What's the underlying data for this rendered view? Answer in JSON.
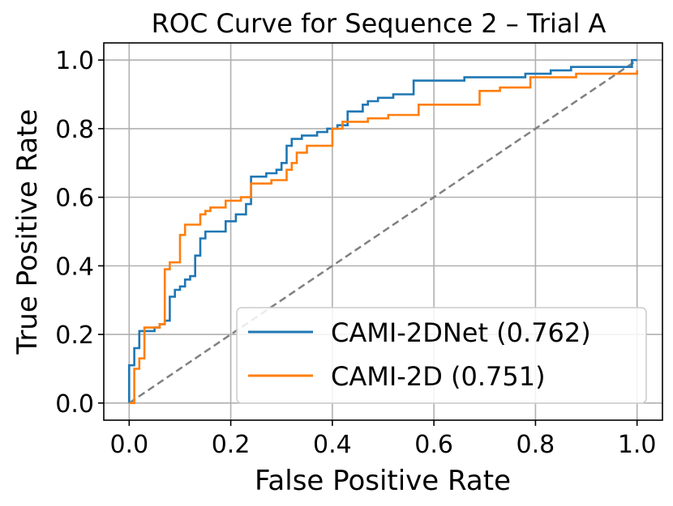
{
  "chart_data": {
    "type": "line",
    "title": "ROC Curve for Sequence 2 – Trial A",
    "xlabel": "False Positive Rate",
    "ylabel": "True Positive Rate",
    "xlim": [
      -0.05,
      1.05
    ],
    "ylim": [
      -0.05,
      1.05
    ],
    "xticks": [
      "0.0",
      "0.2",
      "0.4",
      "0.6",
      "0.8",
      "1.0"
    ],
    "yticks": [
      "0.0",
      "0.2",
      "0.4",
      "0.6",
      "0.8",
      "1.0"
    ],
    "grid": true,
    "legend_position": "lower-right",
    "series": [
      {
        "name": "CAMI-2DNet (0.762)",
        "color": "#1f77b4",
        "x": [
          0.0,
          0.0,
          0.01,
          0.01,
          0.02,
          0.02,
          0.05,
          0.05,
          0.06,
          0.06,
          0.07,
          0.07,
          0.08,
          0.08,
          0.09,
          0.09,
          0.1,
          0.1,
          0.11,
          0.11,
          0.12,
          0.12,
          0.13,
          0.13,
          0.14,
          0.14,
          0.15,
          0.15,
          0.19,
          0.19,
          0.21,
          0.21,
          0.23,
          0.23,
          0.24,
          0.24,
          0.27,
          0.27,
          0.29,
          0.29,
          0.3,
          0.3,
          0.31,
          0.31,
          0.32,
          0.32,
          0.34,
          0.34,
          0.37,
          0.37,
          0.39,
          0.39,
          0.41,
          0.41,
          0.43,
          0.43,
          0.46,
          0.46,
          0.47,
          0.47,
          0.49,
          0.49,
          0.52,
          0.52,
          0.56,
          0.56,
          0.63,
          0.63,
          0.66,
          0.66,
          0.75,
          0.75,
          0.78,
          0.78,
          0.83,
          0.83,
          0.87,
          0.87,
          0.92,
          0.92,
          0.99,
          0.99,
          1.0
        ],
        "y": [
          0.0,
          0.11,
          0.11,
          0.16,
          0.16,
          0.21,
          0.21,
          0.22,
          0.22,
          0.23,
          0.23,
          0.24,
          0.24,
          0.31,
          0.31,
          0.33,
          0.33,
          0.34,
          0.34,
          0.36,
          0.36,
          0.37,
          0.37,
          0.43,
          0.43,
          0.48,
          0.48,
          0.5,
          0.5,
          0.53,
          0.53,
          0.55,
          0.55,
          0.58,
          0.58,
          0.66,
          0.66,
          0.67,
          0.67,
          0.68,
          0.68,
          0.7,
          0.7,
          0.75,
          0.75,
          0.77,
          0.77,
          0.78,
          0.78,
          0.79,
          0.79,
          0.8,
          0.8,
          0.81,
          0.81,
          0.85,
          0.85,
          0.87,
          0.87,
          0.88,
          0.88,
          0.89,
          0.89,
          0.9,
          0.9,
          0.94,
          0.94,
          0.94,
          0.94,
          0.95,
          0.95,
          0.95,
          0.95,
          0.96,
          0.96,
          0.97,
          0.97,
          0.98,
          0.98,
          0.98,
          0.98,
          1.0,
          1.0
        ]
      },
      {
        "name": "CAMI-2D (0.751)",
        "color": "#ff7f0e",
        "x": [
          0.0,
          0.01,
          0.01,
          0.02,
          0.02,
          0.03,
          0.03,
          0.04,
          0.04,
          0.06,
          0.06,
          0.07,
          0.07,
          0.08,
          0.08,
          0.09,
          0.09,
          0.1,
          0.1,
          0.11,
          0.11,
          0.12,
          0.12,
          0.14,
          0.14,
          0.15,
          0.15,
          0.16,
          0.16,
          0.19,
          0.19,
          0.22,
          0.22,
          0.24,
          0.24,
          0.26,
          0.26,
          0.28,
          0.28,
          0.31,
          0.31,
          0.32,
          0.32,
          0.33,
          0.33,
          0.35,
          0.35,
          0.4,
          0.4,
          0.42,
          0.42,
          0.47,
          0.47,
          0.51,
          0.51,
          0.57,
          0.57,
          0.69,
          0.69,
          0.73,
          0.73,
          0.79,
          0.79,
          0.84,
          0.84,
          0.88,
          0.88,
          1.0,
          1.0
        ],
        "y": [
          0.0,
          0.0,
          0.1,
          0.1,
          0.13,
          0.13,
          0.22,
          0.22,
          0.22,
          0.22,
          0.23,
          0.23,
          0.39,
          0.39,
          0.41,
          0.41,
          0.41,
          0.41,
          0.49,
          0.49,
          0.52,
          0.52,
          0.52,
          0.52,
          0.55,
          0.55,
          0.56,
          0.56,
          0.57,
          0.57,
          0.59,
          0.59,
          0.6,
          0.6,
          0.64,
          0.64,
          0.64,
          0.64,
          0.65,
          0.65,
          0.68,
          0.68,
          0.7,
          0.7,
          0.73,
          0.73,
          0.75,
          0.75,
          0.8,
          0.8,
          0.82,
          0.82,
          0.83,
          0.83,
          0.84,
          0.84,
          0.87,
          0.87,
          0.91,
          0.91,
          0.92,
          0.92,
          0.95,
          0.95,
          0.95,
          0.95,
          0.96,
          0.96,
          0.97
        ]
      }
    ],
    "reference_line": {
      "x": [
        0,
        1
      ],
      "y": [
        0,
        1
      ],
      "color": "#808080",
      "style": "dashed"
    }
  }
}
